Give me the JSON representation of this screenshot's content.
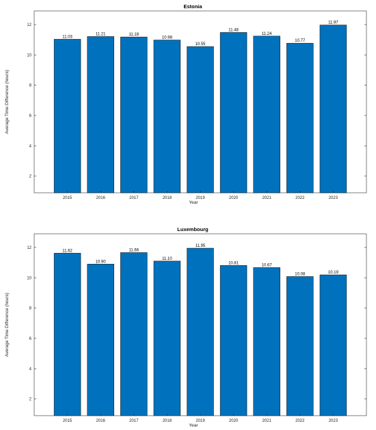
{
  "chart_data": [
    {
      "type": "bar",
      "title": "Estonia",
      "xlabel": "Year",
      "ylabel": "Average Time Difference (hours)",
      "categories": [
        "2015",
        "2016",
        "2017",
        "2018",
        "2019",
        "2020",
        "2021",
        "2022",
        "2023"
      ],
      "values": [
        11.03,
        11.21,
        11.18,
        10.98,
        10.55,
        11.48,
        11.24,
        10.77,
        11.97
      ],
      "value_labels": [
        "11.03",
        "11.21",
        "11.18",
        "10.98",
        "10.55",
        "11.48",
        "11.24",
        "10.77",
        "11.97"
      ],
      "yticks": [
        2,
        4,
        6,
        8,
        10,
        12
      ],
      "ylim": [
        0.9,
        12.9
      ],
      "grid": false,
      "legend": false,
      "bar_color": "#0072BD"
    },
    {
      "type": "bar",
      "title": "Luxembourg",
      "xlabel": "Year",
      "ylabel": "Average Time Difference (hours)",
      "categories": [
        "2015",
        "2016",
        "2017",
        "2018",
        "2019",
        "2020",
        "2021",
        "2022",
        "2023"
      ],
      "values": [
        11.62,
        10.9,
        11.66,
        11.1,
        11.95,
        10.81,
        10.67,
        10.08,
        10.19
      ],
      "value_labels": [
        "11.62",
        "10.90",
        "11.66",
        "11.10",
        "11.95",
        "10.81",
        "10.67",
        "10.08",
        "10.19"
      ],
      "yticks": [
        2,
        4,
        6,
        8,
        10,
        12
      ],
      "ylim": [
        0.9,
        12.9
      ],
      "grid": false,
      "legend": false,
      "bar_color": "#0072BD"
    }
  ]
}
